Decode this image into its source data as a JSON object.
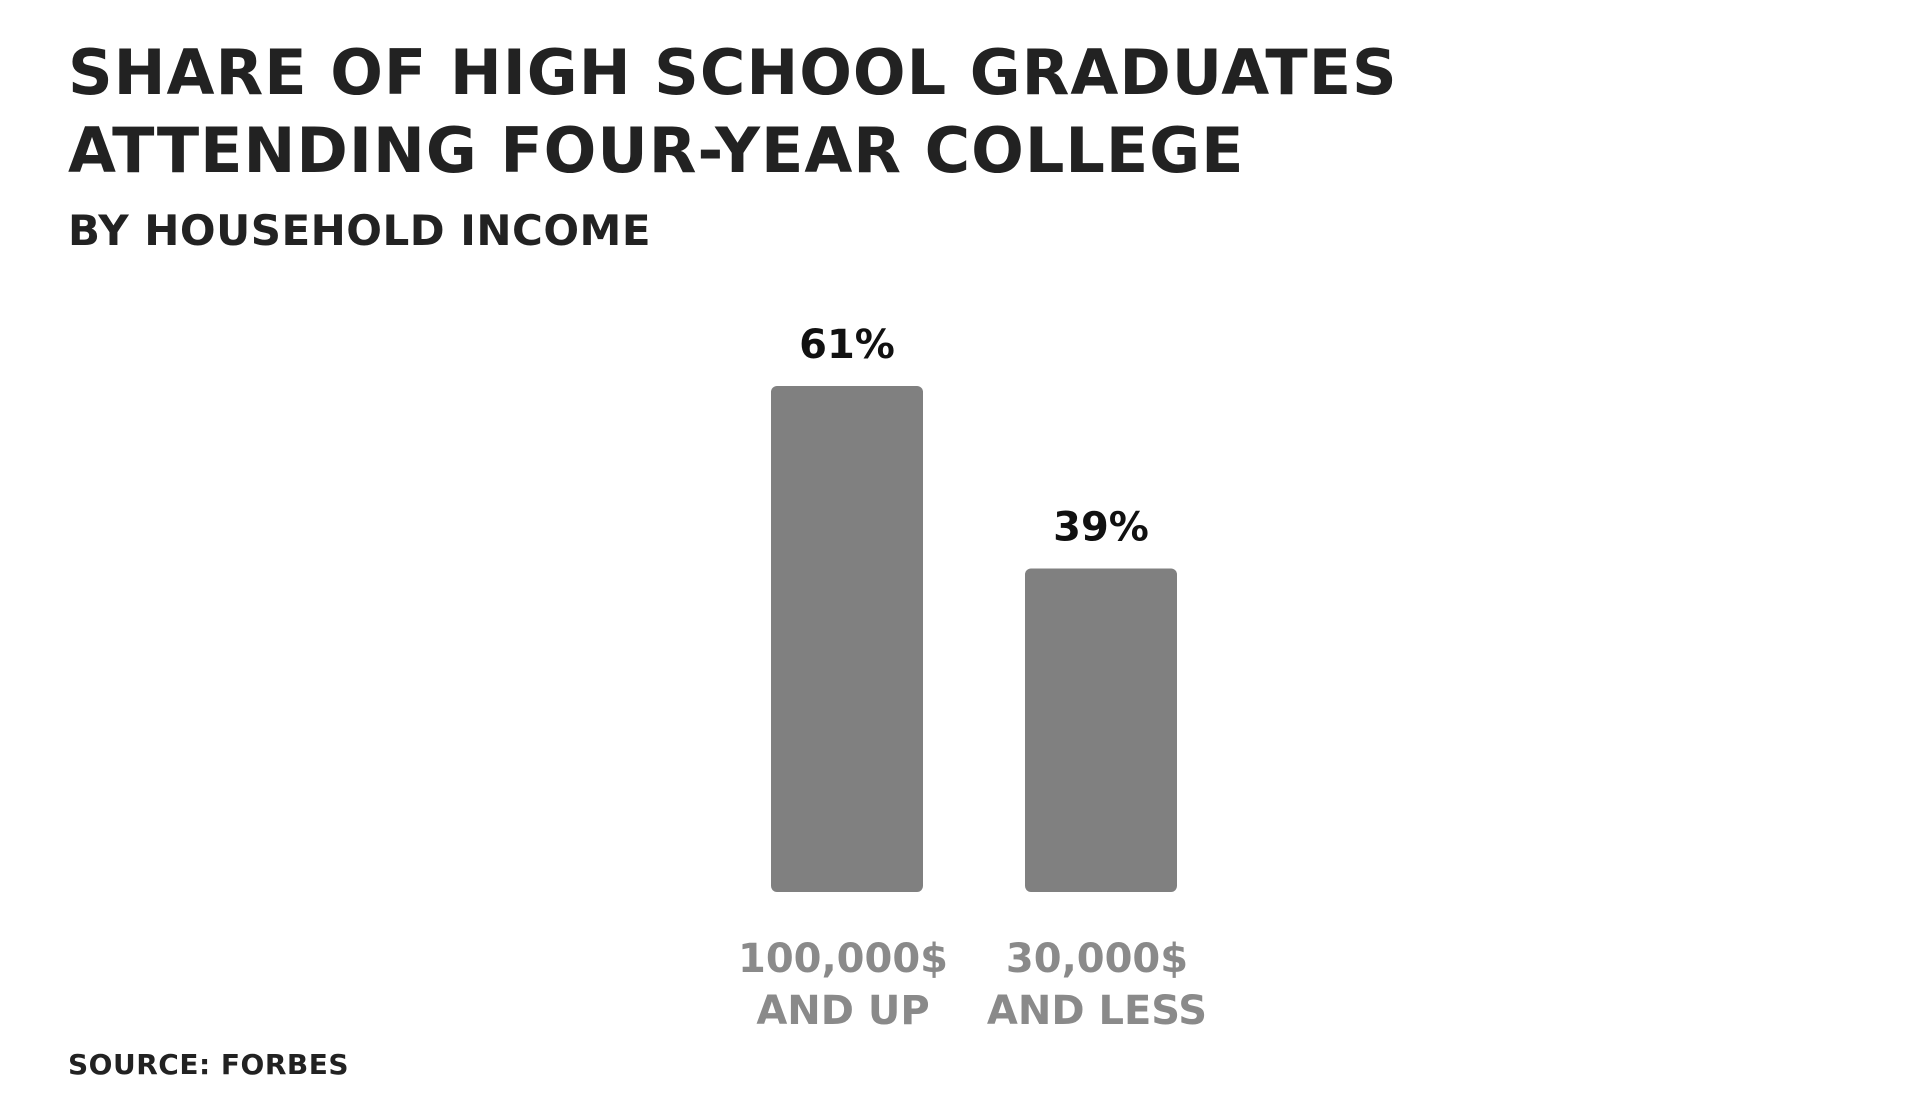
{
  "title": "SHARE OF HIGH SCHOOL GRADUATES ATTENDING FOUR-YEAR COLLEGE",
  "subtitle": "BY HOUSEHOLD INCOME",
  "source": "SOURCE: FORBES",
  "colors": {
    "bar": "#808080",
    "category_label": "#8a8a8a",
    "value_label": "#111111",
    "title": "#222222"
  },
  "chart_data": {
    "type": "bar",
    "categories": [
      [
        "100,000$",
        "AND UP"
      ],
      [
        "30,000$",
        "AND LESS"
      ]
    ],
    "values": [
      61,
      39
    ],
    "value_labels": [
      "61%",
      "39%"
    ],
    "ylim": [
      0,
      61
    ],
    "grid": false,
    "legend": "none"
  }
}
